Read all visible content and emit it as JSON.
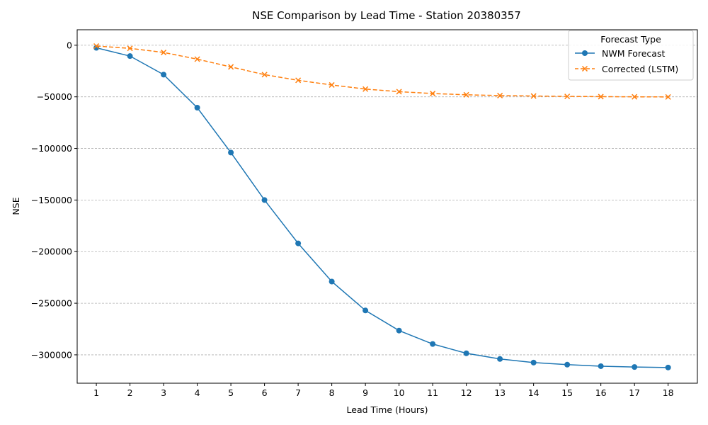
{
  "chart_data": {
    "type": "line",
    "title": "NSE Comparison by Lead Time - Station 20380357",
    "xlabel": "Lead Time (Hours)",
    "ylabel": "NSE",
    "x": [
      1,
      2,
      3,
      4,
      5,
      6,
      7,
      8,
      9,
      10,
      11,
      12,
      13,
      14,
      15,
      16,
      17,
      18
    ],
    "x_ticks": [
      "1",
      "2",
      "3",
      "4",
      "5",
      "6",
      "7",
      "8",
      "9",
      "10",
      "11",
      "12",
      "13",
      "14",
      "15",
      "16",
      "17",
      "18"
    ],
    "xlim": [
      0.43,
      18.87
    ],
    "ylim": [
      -327500,
      15000
    ],
    "y_ticks": [
      0,
      -50000,
      -100000,
      -150000,
      -200000,
      -250000,
      -300000
    ],
    "y_tick_labels": [
      "0",
      "−50000",
      "−100000",
      "−150000",
      "−200000",
      "−250000",
      "−300000"
    ],
    "grid": "horizontal dashed",
    "legend": {
      "title": "Forecast Type",
      "placement": "top-right"
    },
    "series": [
      {
        "name": "NWM Forecast",
        "color": "#1f77b4",
        "line_style": "solid",
        "marker": "circle",
        "values": [
          -2500,
          -10500,
          -28500,
          -60500,
          -104000,
          -150000,
          -192000,
          -229000,
          -257000,
          -276500,
          -289500,
          -298500,
          -304000,
          -307500,
          -309500,
          -311000,
          -311800,
          -312300
        ]
      },
      {
        "name": "Corrected (LSTM)",
        "color": "#ff7f0e",
        "line_style": "dashed",
        "marker": "x",
        "values": [
          -800,
          -3000,
          -7000,
          -13500,
          -21000,
          -28500,
          -34000,
          -38500,
          -42500,
          -45000,
          -46800,
          -48000,
          -48800,
          -49200,
          -49600,
          -49800,
          -50000,
          -50100
        ]
      }
    ]
  }
}
